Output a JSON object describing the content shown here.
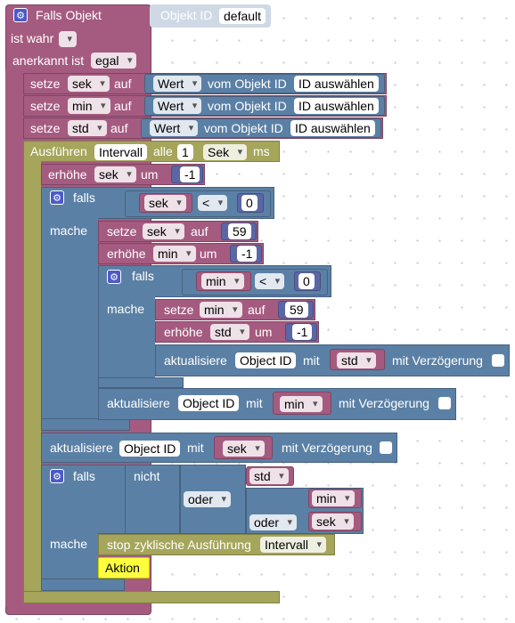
{
  "trigger": {
    "falls_objekt": "Falls Objekt",
    "objekt_id_label": "Objekt ID",
    "objekt_id_value": "default",
    "ist_wahr": "ist wahr",
    "anerkannt_ist": "anerkannt ist",
    "egal": "egal"
  },
  "set_vars": [
    {
      "setze": "setze",
      "var": "sek",
      "auf": "auf",
      "wert": "Wert",
      "vom": "vom Objekt ID",
      "id": "ID auswählen"
    },
    {
      "setze": "setze",
      "var": "min",
      "auf": "auf",
      "wert": "Wert",
      "vom": "vom Objekt ID",
      "id": "ID auswählen"
    },
    {
      "setze": "setze",
      "var": "std",
      "auf": "auf",
      "wert": "Wert",
      "vom": "vom Objekt ID",
      "id": "ID auswählen"
    }
  ],
  "interval": {
    "ausfuehren": "Ausführen",
    "name": "Intervall",
    "alle": "alle",
    "num": "1",
    "unit": "Sek",
    "ms": "ms"
  },
  "erhoehe_sek": {
    "erhoehe": "erhöhe",
    "var": "sek",
    "um": "um",
    "val": "-1"
  },
  "if1": {
    "falls": "falls",
    "var": "sek",
    "op": "<",
    "num": "0",
    "mache": "mache",
    "setze": "setze",
    "setze_var": "sek",
    "auf": "auf",
    "setze_val": "59",
    "erhoehe": "erhöhe",
    "erhoehe_var": "min",
    "um": "um",
    "erhoehe_val": "-1"
  },
  "if2": {
    "falls": "falls",
    "var": "min",
    "op": "<",
    "num": "0",
    "mache": "mache",
    "setze": "setze",
    "setze_var": "min",
    "auf": "auf",
    "setze_val": "59",
    "erhoehe": "erhöhe",
    "erhoehe_var": "std",
    "um": "um",
    "erhoehe_val": "-1"
  },
  "update_std": {
    "aktualisiere": "aktualisiere",
    "obj": "Object ID",
    "mit": "mit",
    "var": "std",
    "delay": "mit Verzögerung"
  },
  "update_min": {
    "aktualisiere": "aktualisiere",
    "obj": "Object ID",
    "mit": "mit",
    "var": "min",
    "delay": "mit Verzögerung"
  },
  "update_sek": {
    "aktualisiere": "aktualisiere",
    "obj": "Object ID",
    "mit": "mit",
    "var": "sek",
    "delay": "mit Verzögerung"
  },
  "if3": {
    "falls": "falls",
    "nicht": "nicht",
    "oder1": "oder",
    "oder2": "oder",
    "v_std": "std",
    "v_min": "min",
    "v_sek": "sek",
    "mache": "mache",
    "stop": "stop zyklische Ausführung",
    "stop_name": "Intervall",
    "aktion": "Aktion"
  },
  "colors": {
    "event": "#a55b80",
    "variables": "#a55b80",
    "logic": "#5b80a5",
    "timer": "#a5a55b",
    "math": "#5b67a5"
  }
}
